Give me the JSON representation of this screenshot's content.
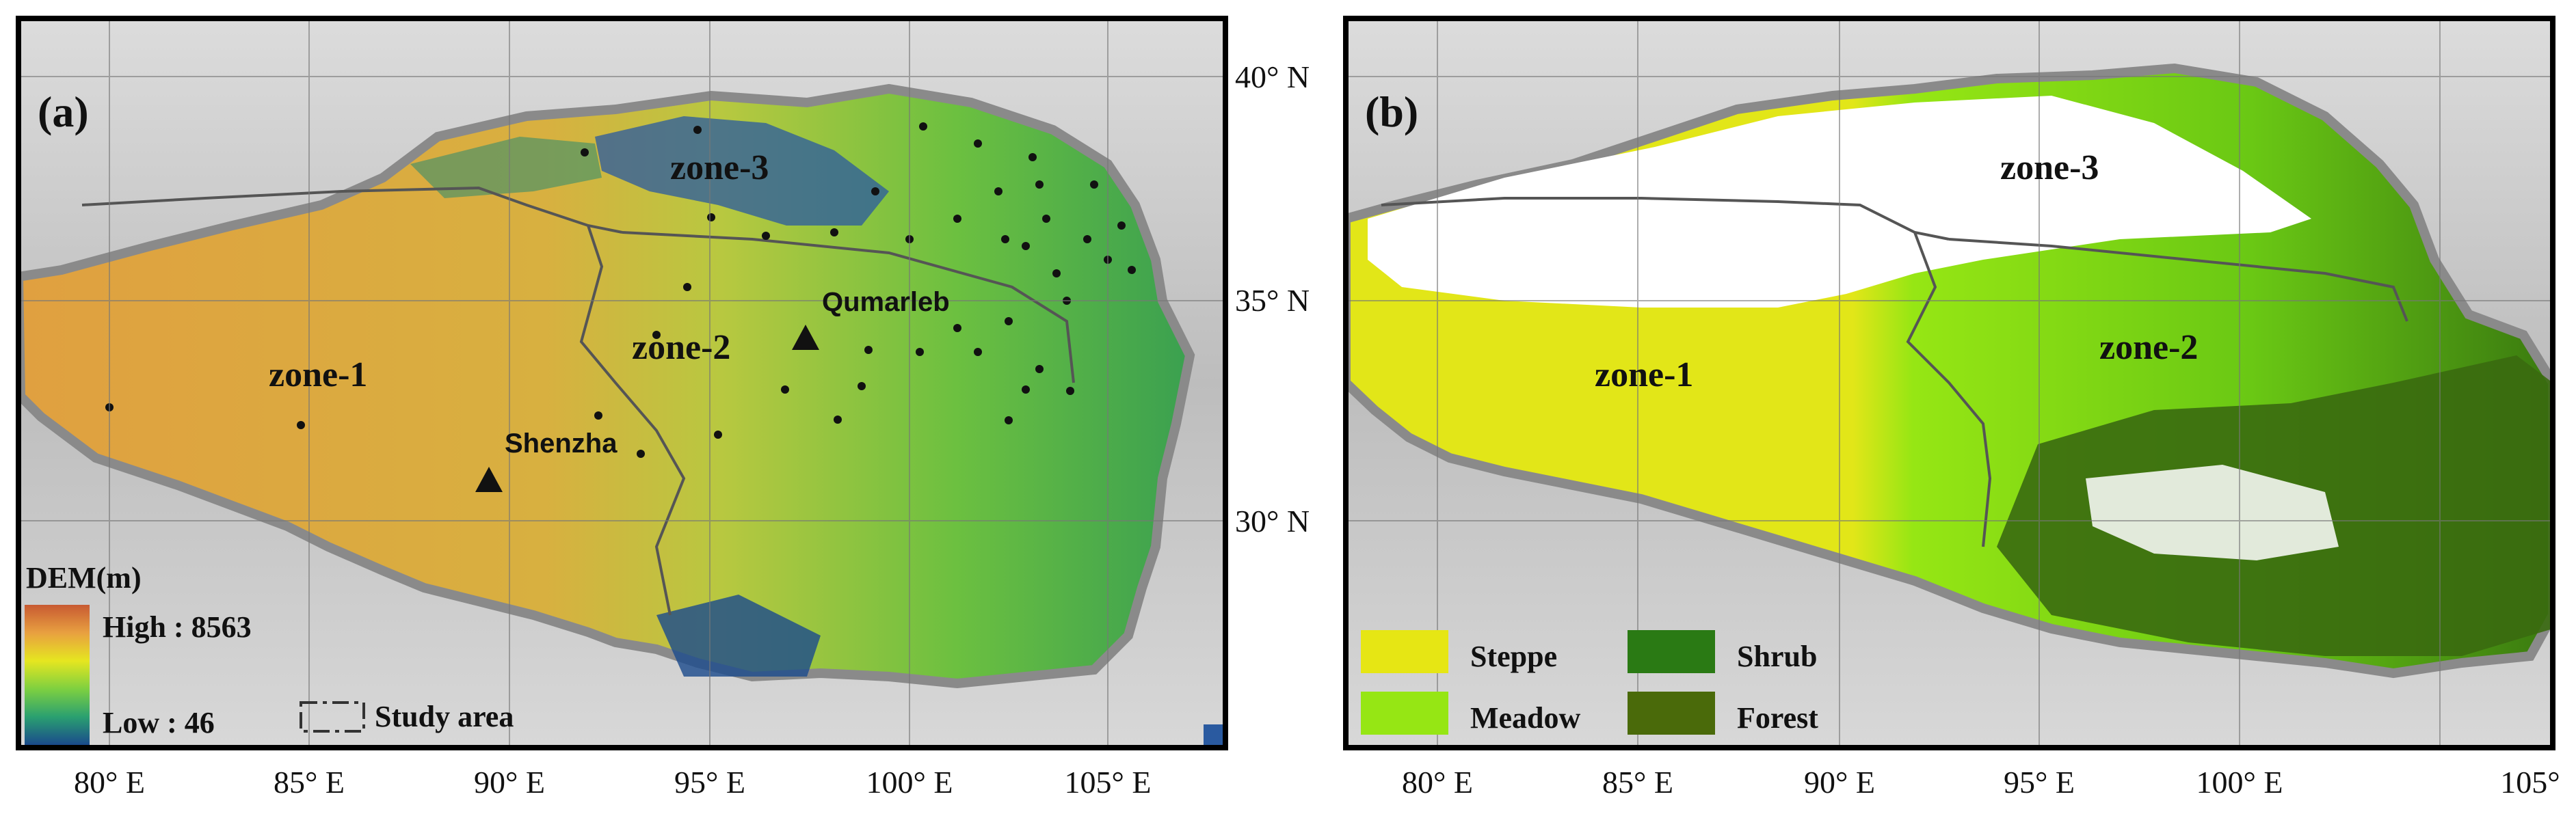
{
  "panel_a": {
    "label": "(a)",
    "zones": [
      "zone-1",
      "zone-2",
      "zone-3"
    ],
    "stations": [
      {
        "name": "Qumarleb"
      },
      {
        "name": "Shenzha"
      }
    ],
    "legend": {
      "title": "DEM(m)",
      "high_label": "High : 8563",
      "low_label": "Low : 46",
      "study_area_label": "Study area",
      "gradient_colors": [
        "#c85a32",
        "#e8a040",
        "#e6e620",
        "#7ed040",
        "#2aa070",
        "#1a4a8c"
      ]
    }
  },
  "panel_b": {
    "label": "(b)",
    "zones": [
      "zone-1",
      "zone-2",
      "zone-3"
    ],
    "legend": [
      {
        "name": "Steppe",
        "color": "#e6e614"
      },
      {
        "name": "Meadow",
        "color": "#96e614"
      },
      {
        "name": "Shrub",
        "color": "#2a7a14"
      },
      {
        "name": "Forest",
        "color": "#4a6a0a"
      }
    ]
  },
  "axes": {
    "x_ticks_a": [
      "80° E",
      "85° E",
      "90° E",
      "95° E",
      "100° E",
      "105° E"
    ],
    "x_ticks_b": [
      "80° E",
      "85° E",
      "90° E",
      "95° E",
      "100° E",
      "105°"
    ],
    "y_ticks": [
      "40° N",
      "35° N",
      "30° N"
    ]
  }
}
